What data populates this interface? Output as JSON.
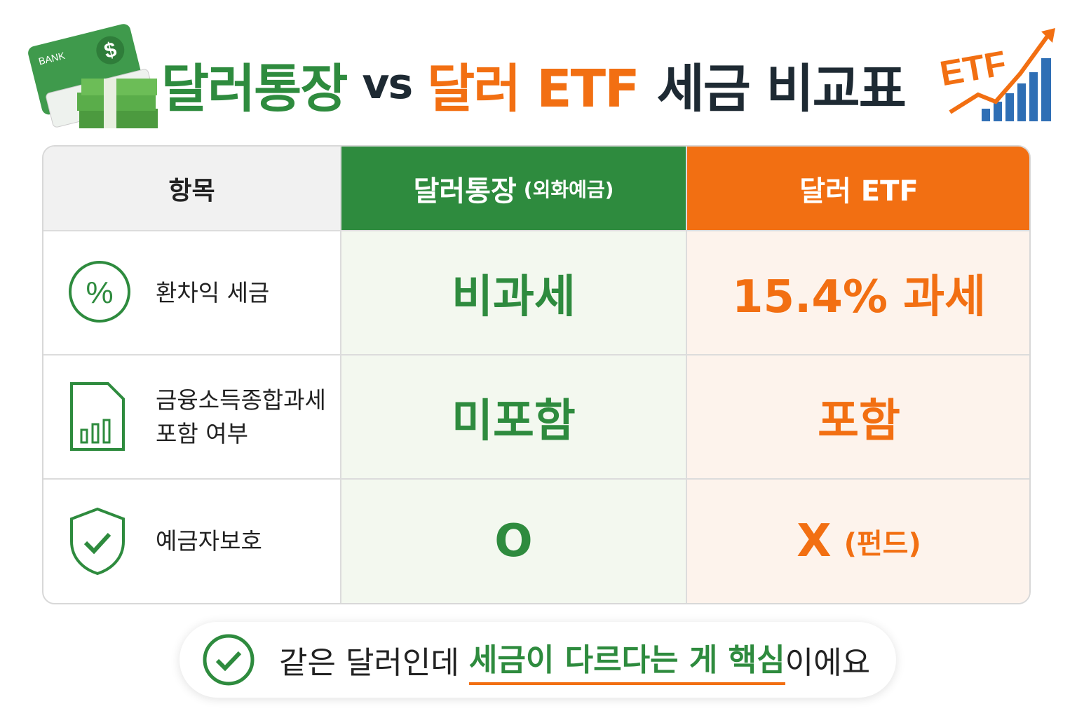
{
  "header": {
    "title": {
      "part1": "달러통장",
      "vs": "vs",
      "part2": "달러 ETF",
      "part3": "세금 비교표"
    },
    "left_illustration": {
      "card_label": "BANK",
      "symbol": "$"
    },
    "right_illustration": {
      "label": "ETF"
    }
  },
  "table": {
    "columns": {
      "item": "항목",
      "bank": "달러통장",
      "bank_note": "(외화예금)",
      "etf": "달러 ETF"
    },
    "rows": [
      {
        "item": [
          "환차익 세금"
        ],
        "bank": "비과세",
        "etf": "15.4% 과세"
      },
      {
        "item": [
          "금융소득종합과세",
          "포함 여부"
        ],
        "bank": "미포함",
        "etf": "포함"
      },
      {
        "item": [
          "예금자보호"
        ],
        "bank": "O",
        "etf": "X",
        "etf_note": "(펀드)"
      }
    ]
  },
  "footer": {
    "before": "같은 달러인데 ",
    "highlight": "세금이 다르다는 게 핵심",
    "after": "이에요"
  }
}
